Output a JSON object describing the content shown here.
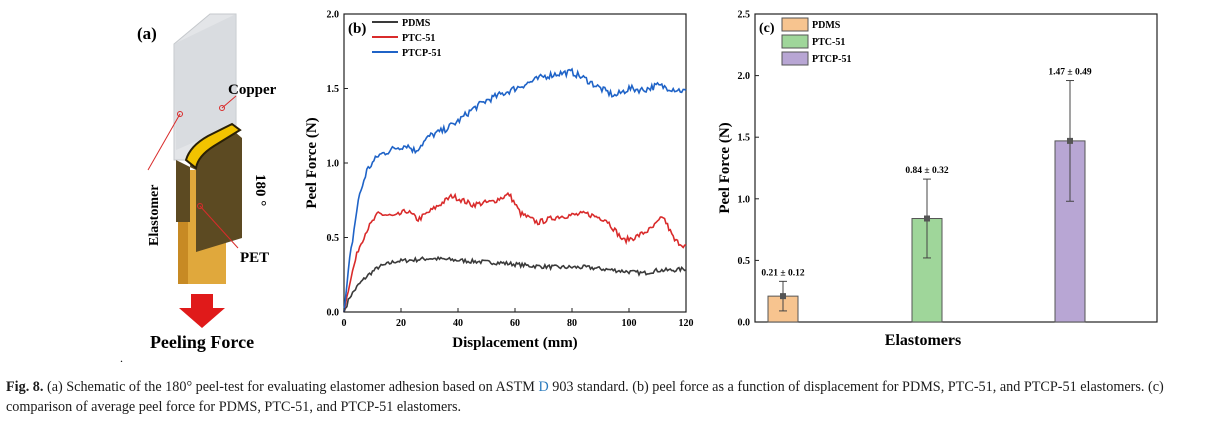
{
  "panel_a": {
    "label": "(a)",
    "copper_label": "Copper",
    "elastomer_label": "Elastomer",
    "pet_label": "PET",
    "angle_label": "180 °",
    "force_label": "Peeling Force",
    "colors": {
      "arrow": "#e01a1a",
      "copper": "#d9a441",
      "pet": "#6e5a2d",
      "gold": "#f2c300"
    }
  },
  "caption": {
    "fig_label": "Fig. 8.",
    "text_1": " (a) Schematic of the 180° peel-test for evaluating elastomer adhesion based on ASTM ",
    "link_text": "D",
    "text_2": " 903 standard. (b) peel force as a function of displacement for PDMS, PTC-51, and PTCP-51 elastomers. (c) comparison of average peel force for PDMS, PTC-51, and PTCP-51 elastomers."
  },
  "stray_mark": ".",
  "chart_data": [
    {
      "panel": "(b)",
      "type": "line",
      "xlabel": "Displacement (mm)",
      "ylabel": "Peel Force (N)",
      "xlim": [
        0,
        120
      ],
      "ylim": [
        0,
        2.0
      ],
      "xticks": [
        "0",
        "20",
        "40",
        "60",
        "80",
        "100",
        "120"
      ],
      "yticks": [
        "0.0",
        "0.5",
        "1.0",
        "1.5",
        "2.0"
      ],
      "legend_position": "top-left",
      "series": [
        {
          "name": "PDMS",
          "color": "#3a3a3a",
          "x": [
            0,
            2,
            5,
            8,
            12,
            18,
            25,
            30,
            38,
            45,
            55,
            65,
            75,
            85,
            95,
            100,
            105,
            110,
            115,
            120
          ],
          "y": [
            0.0,
            0.1,
            0.18,
            0.24,
            0.3,
            0.34,
            0.35,
            0.36,
            0.35,
            0.34,
            0.33,
            0.31,
            0.3,
            0.3,
            0.28,
            0.27,
            0.26,
            0.28,
            0.28,
            0.29
          ]
        },
        {
          "name": "PTC-51",
          "color": "#d92b2b",
          "x": [
            0,
            2,
            5,
            8,
            12,
            18,
            22,
            26,
            32,
            38,
            45,
            52,
            58,
            62,
            68,
            75,
            85,
            92,
            98,
            102,
            108,
            112,
            116,
            120
          ],
          "y": [
            0.0,
            0.2,
            0.42,
            0.55,
            0.66,
            0.64,
            0.68,
            0.62,
            0.7,
            0.78,
            0.72,
            0.74,
            0.79,
            0.66,
            0.6,
            0.64,
            0.66,
            0.62,
            0.48,
            0.5,
            0.56,
            0.64,
            0.48,
            0.44
          ]
        },
        {
          "name": "PTCP-51",
          "color": "#1f63c7",
          "x": [
            0,
            2,
            5,
            8,
            12,
            18,
            22,
            25,
            30,
            35,
            40,
            45,
            50,
            55,
            60,
            65,
            70,
            75,
            80,
            85,
            90,
            95,
            100,
            105,
            110,
            115,
            120
          ],
          "y": [
            0.0,
            0.35,
            0.75,
            0.95,
            1.05,
            1.1,
            1.12,
            1.08,
            1.18,
            1.22,
            1.28,
            1.36,
            1.42,
            1.46,
            1.5,
            1.54,
            1.58,
            1.6,
            1.61,
            1.56,
            1.5,
            1.45,
            1.5,
            1.49,
            1.52,
            1.5,
            1.48
          ]
        }
      ]
    },
    {
      "panel": "(c)",
      "type": "bar",
      "xlabel": "Elastomers",
      "ylabel": "Peel Force (N)",
      "ylim": [
        0,
        2.5
      ],
      "yticks": [
        "0.0",
        "0.5",
        "1.0",
        "1.5",
        "2.0",
        "2.5"
      ],
      "legend_position": "top-left",
      "categories": [
        "PDMS",
        "PTC-51",
        "PTCP-51"
      ],
      "values": [
        0.21,
        0.84,
        1.47
      ],
      "errors": [
        0.12,
        0.32,
        0.49
      ],
      "value_labels": [
        "0.21 ± 0.12",
        "0.84 ± 0.32",
        "1.47 ± 0.49"
      ],
      "colors": [
        "#f7c48f",
        "#9fd69a",
        "#b8a6d4"
      ]
    }
  ]
}
